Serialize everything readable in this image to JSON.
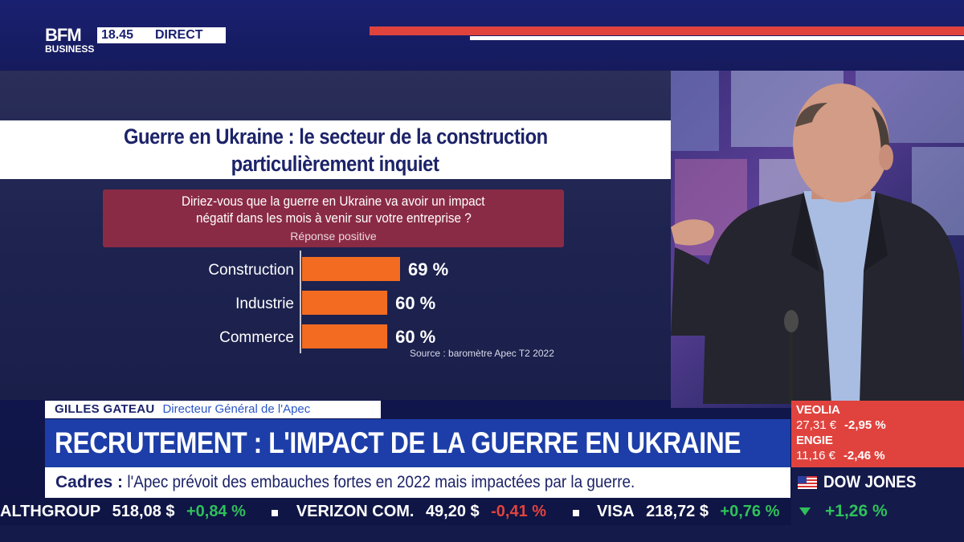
{
  "header": {
    "logo_top": "BFM",
    "logo_bottom": "BUSINESS",
    "time": "18.45",
    "live": "DIRECT"
  },
  "graphic": {
    "title_line1": "Guerre en Ukraine : le secteur de la construction",
    "title_line2": "particulièrement inquiet",
    "question_line1": "Diriez-vous que la guerre en Ukraine va avoir un impact",
    "question_line2": "négatif dans les mois à venir sur votre entreprise ?",
    "subtitle": "Réponse positive",
    "source": "Source : baromètre Apec T2 2022"
  },
  "chart_data": {
    "type": "bar",
    "orientation": "horizontal",
    "categories": [
      "Construction",
      "Industrie",
      "Commerce"
    ],
    "values": [
      69,
      60,
      60
    ],
    "value_labels": [
      "69 %",
      "60 %",
      "60 %"
    ],
    "bar_color": "#f26b21",
    "title": "Guerre en Ukraine : le secteur de la construction particulièrement inquiet",
    "grid": false
  },
  "lower_third": {
    "name": "GILLES GATEAU",
    "role": "Directeur Général de l'Apec",
    "headline": "RECRUTEMENT : L'IMPACT DE LA GUERRE EN UKRAINE",
    "topic_key": "Cadres :",
    "topic_text": "l'Apec prévoit des embauches fortes en 2022 mais impactées par la guerre."
  },
  "ticker": [
    {
      "name": "ALTHGROUP",
      "price": "518,08 $",
      "change": "+0,84 %",
      "dir": "up"
    },
    {
      "name": "VERIZON COM.",
      "price": "49,20 $",
      "change": "-0,41 %",
      "dir": "down"
    },
    {
      "name": "VISA",
      "price": "218,72 $",
      "change": "+0,76 %",
      "dir": "up"
    }
  ],
  "stocks": [
    {
      "name": "VEOLIA",
      "price": "27,31 €",
      "change": "-2,95 %"
    },
    {
      "name": "ENGIE",
      "price": "11,16 €",
      "change": "-2,46 %"
    }
  ],
  "index": {
    "name": "DOW JONES",
    "change": "+1,26 %"
  },
  "colors": {
    "brand_blue": "#1d3ea8",
    "navy": "#141a4a",
    "red": "#e0433e",
    "orange_bar": "#f26b21",
    "green": "#2fc05b",
    "question_box": "#8a2b46"
  }
}
